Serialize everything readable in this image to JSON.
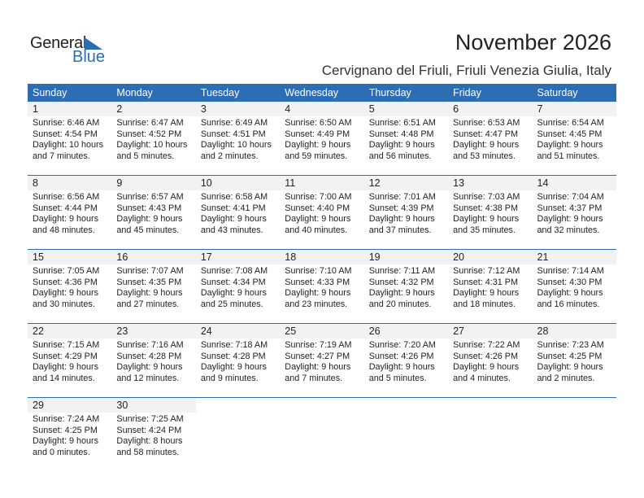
{
  "logo": {
    "line1": "General",
    "line2": "Blue"
  },
  "title": "November 2026",
  "subtitle": "Cervignano del Friuli, Friuli Venezia Giulia, Italy",
  "colors": {
    "header": "#2d6db3",
    "band": "#f2f2f2"
  },
  "weekdays": [
    "Sunday",
    "Monday",
    "Tuesday",
    "Wednesday",
    "Thursday",
    "Friday",
    "Saturday"
  ],
  "weeks": [
    [
      {
        "day": "1",
        "sunrise": "Sunrise: 6:46 AM",
        "sunset": "Sunset: 4:54 PM",
        "daylight": "Daylight: 10 hours",
        "minutes": "and 7 minutes."
      },
      {
        "day": "2",
        "sunrise": "Sunrise: 6:47 AM",
        "sunset": "Sunset: 4:52 PM",
        "daylight": "Daylight: 10 hours",
        "minutes": "and 5 minutes."
      },
      {
        "day": "3",
        "sunrise": "Sunrise: 6:49 AM",
        "sunset": "Sunset: 4:51 PM",
        "daylight": "Daylight: 10 hours",
        "minutes": "and 2 minutes."
      },
      {
        "day": "4",
        "sunrise": "Sunrise: 6:50 AM",
        "sunset": "Sunset: 4:49 PM",
        "daylight": "Daylight: 9 hours",
        "minutes": "and 59 minutes."
      },
      {
        "day": "5",
        "sunrise": "Sunrise: 6:51 AM",
        "sunset": "Sunset: 4:48 PM",
        "daylight": "Daylight: 9 hours",
        "minutes": "and 56 minutes."
      },
      {
        "day": "6",
        "sunrise": "Sunrise: 6:53 AM",
        "sunset": "Sunset: 4:47 PM",
        "daylight": "Daylight: 9 hours",
        "minutes": "and 53 minutes."
      },
      {
        "day": "7",
        "sunrise": "Sunrise: 6:54 AM",
        "sunset": "Sunset: 4:45 PM",
        "daylight": "Daylight: 9 hours",
        "minutes": "and 51 minutes."
      }
    ],
    [
      {
        "day": "8",
        "sunrise": "Sunrise: 6:56 AM",
        "sunset": "Sunset: 4:44 PM",
        "daylight": "Daylight: 9 hours",
        "minutes": "and 48 minutes."
      },
      {
        "day": "9",
        "sunrise": "Sunrise: 6:57 AM",
        "sunset": "Sunset: 4:43 PM",
        "daylight": "Daylight: 9 hours",
        "minutes": "and 45 minutes."
      },
      {
        "day": "10",
        "sunrise": "Sunrise: 6:58 AM",
        "sunset": "Sunset: 4:41 PM",
        "daylight": "Daylight: 9 hours",
        "minutes": "and 43 minutes."
      },
      {
        "day": "11",
        "sunrise": "Sunrise: 7:00 AM",
        "sunset": "Sunset: 4:40 PM",
        "daylight": "Daylight: 9 hours",
        "minutes": "and 40 minutes."
      },
      {
        "day": "12",
        "sunrise": "Sunrise: 7:01 AM",
        "sunset": "Sunset: 4:39 PM",
        "daylight": "Daylight: 9 hours",
        "minutes": "and 37 minutes."
      },
      {
        "day": "13",
        "sunrise": "Sunrise: 7:03 AM",
        "sunset": "Sunset: 4:38 PM",
        "daylight": "Daylight: 9 hours",
        "minutes": "and 35 minutes."
      },
      {
        "day": "14",
        "sunrise": "Sunrise: 7:04 AM",
        "sunset": "Sunset: 4:37 PM",
        "daylight": "Daylight: 9 hours",
        "minutes": "and 32 minutes."
      }
    ],
    [
      {
        "day": "15",
        "sunrise": "Sunrise: 7:05 AM",
        "sunset": "Sunset: 4:36 PM",
        "daylight": "Daylight: 9 hours",
        "minutes": "and 30 minutes."
      },
      {
        "day": "16",
        "sunrise": "Sunrise: 7:07 AM",
        "sunset": "Sunset: 4:35 PM",
        "daylight": "Daylight: 9 hours",
        "minutes": "and 27 minutes."
      },
      {
        "day": "17",
        "sunrise": "Sunrise: 7:08 AM",
        "sunset": "Sunset: 4:34 PM",
        "daylight": "Daylight: 9 hours",
        "minutes": "and 25 minutes."
      },
      {
        "day": "18",
        "sunrise": "Sunrise: 7:10 AM",
        "sunset": "Sunset: 4:33 PM",
        "daylight": "Daylight: 9 hours",
        "minutes": "and 23 minutes."
      },
      {
        "day": "19",
        "sunrise": "Sunrise: 7:11 AM",
        "sunset": "Sunset: 4:32 PM",
        "daylight": "Daylight: 9 hours",
        "minutes": "and 20 minutes."
      },
      {
        "day": "20",
        "sunrise": "Sunrise: 7:12 AM",
        "sunset": "Sunset: 4:31 PM",
        "daylight": "Daylight: 9 hours",
        "minutes": "and 18 minutes."
      },
      {
        "day": "21",
        "sunrise": "Sunrise: 7:14 AM",
        "sunset": "Sunset: 4:30 PM",
        "daylight": "Daylight: 9 hours",
        "minutes": "and 16 minutes."
      }
    ],
    [
      {
        "day": "22",
        "sunrise": "Sunrise: 7:15 AM",
        "sunset": "Sunset: 4:29 PM",
        "daylight": "Daylight: 9 hours",
        "minutes": "and 14 minutes."
      },
      {
        "day": "23",
        "sunrise": "Sunrise: 7:16 AM",
        "sunset": "Sunset: 4:28 PM",
        "daylight": "Daylight: 9 hours",
        "minutes": "and 12 minutes."
      },
      {
        "day": "24",
        "sunrise": "Sunrise: 7:18 AM",
        "sunset": "Sunset: 4:28 PM",
        "daylight": "Daylight: 9 hours",
        "minutes": "and 9 minutes."
      },
      {
        "day": "25",
        "sunrise": "Sunrise: 7:19 AM",
        "sunset": "Sunset: 4:27 PM",
        "daylight": "Daylight: 9 hours",
        "minutes": "and 7 minutes."
      },
      {
        "day": "26",
        "sunrise": "Sunrise: 7:20 AM",
        "sunset": "Sunset: 4:26 PM",
        "daylight": "Daylight: 9 hours",
        "minutes": "and 5 minutes."
      },
      {
        "day": "27",
        "sunrise": "Sunrise: 7:22 AM",
        "sunset": "Sunset: 4:26 PM",
        "daylight": "Daylight: 9 hours",
        "minutes": "and 4 minutes."
      },
      {
        "day": "28",
        "sunrise": "Sunrise: 7:23 AM",
        "sunset": "Sunset: 4:25 PM",
        "daylight": "Daylight: 9 hours",
        "minutes": "and 2 minutes."
      }
    ],
    [
      {
        "day": "29",
        "sunrise": "Sunrise: 7:24 AM",
        "sunset": "Sunset: 4:25 PM",
        "daylight": "Daylight: 9 hours",
        "minutes": "and 0 minutes."
      },
      {
        "day": "30",
        "sunrise": "Sunrise: 7:25 AM",
        "sunset": "Sunset: 4:24 PM",
        "daylight": "Daylight: 8 hours",
        "minutes": "and 58 minutes."
      }
    ]
  ]
}
